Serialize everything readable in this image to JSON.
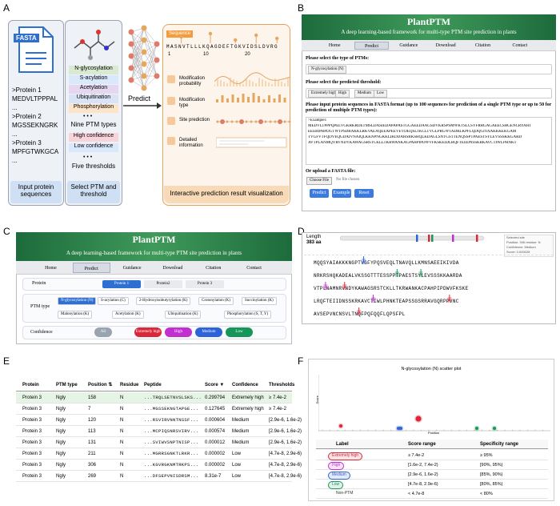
{
  "panel_labels": [
    "A",
    "B",
    "C",
    "D",
    "E",
    "F"
  ],
  "panel_a": {
    "fasta_label": "FASTA",
    "fasta_lines": [
      ">Protein 1",
      "MEDVLTPPPAL",
      "...",
      ">Protein 2",
      "MGSSEKNGRK",
      "...",
      ">Protein 3",
      "MPFGTWKGCA",
      "..."
    ],
    "input_caption": "Input protein sequences",
    "ptm_types": [
      "N-glycosylation",
      "S-acylation",
      "Acetylation",
      "Ubiquitination",
      "Phosphorylation"
    ],
    "ellipsis": "• • •",
    "ptm_caption": "Nine PTM types",
    "thresholds": [
      "High confidence",
      "Low confidence"
    ],
    "threshold_caption": "Five thresholds",
    "select_caption": "Select PTM and threshold",
    "predict": "Predict",
    "sequence_chip": "Sequence",
    "sequence": "MASNVTLLLKQAGDEFTGKVIDSLDVRG",
    "axis_ticks": [
      "1",
      "10",
      "20"
    ],
    "rows": [
      "Modification probability",
      "Modification type",
      "Site prediction",
      "Detailed information"
    ],
    "viz_caption": "Interactive prediction result visualization"
  },
  "site": {
    "name": "PlantPTM",
    "tagline": "A deep learning-based framework for multi-type PTM site prediction in plants",
    "nav": [
      "Home",
      "Predict",
      "Guidance",
      "Download",
      "Citation",
      "Contact"
    ]
  },
  "panel_b": {
    "ptm_prompt": "Please select the type of PTMs:",
    "ptm_chip": "N-glycosylation (N)",
    "threshold_prompt": "Please select the predicted threshold:",
    "threshold_chips": [
      "Extremely high",
      "High",
      "Medium",
      "Low"
    ],
    "seq_prompt": "Please input protein sequences in FASTA format (up to 100 sequences for prediction of a single PTM type or up to 50 for prediction of multiple PTM types):",
    "textarea": [
      ">Example1",
      "MEDVLTPPPQPELVGKRKRDETMSLDASIEDAPAPASTGGAEEDAAGSDVKRSPSMWKTSLCSYFRRGAGAEECSHGENCRYAHT",
      "EEERIPRPDGTWTPSDRAKKLRKVAEAQEEAPEEVEVDEQSLTKCLTVGLPRGWTADRLKPFLQDQGIYAAKKKEKGAM",
      "TVGFVTFQDVEQGDAIVNAIQLKKNPNGKKLIKDDAHSRKSHQLKDAGLSNTGSTTENQSSPTPAESTSYLEVSSSKKGARD",
      "AVTPLANMQYRVNDYKAWAGSRSTCKLLTKRWANKACPAHPIPDWVFKSKEIDLRQFTEIIDNSSKRKAVCTIWLPHNKT"
    ],
    "upload_prompt": "Or upload a FASTA file:",
    "choose": "Choose File",
    "no_file": "No file chosen",
    "buttons": [
      "Predict",
      "Example",
      "Reset"
    ]
  },
  "panel_c": {
    "protein_label": "Protein",
    "proteins": [
      "Protein 1",
      "Protein2",
      "Protein 3"
    ],
    "ptm_label": "PTM type",
    "ptm_types": [
      "N-glycosylation (N)",
      "S-acylation (C)",
      "2-Hydroxyisobutyrylation (K)",
      "Crotonylation (K)",
      "Succinylation (K)",
      "Malonylation (K)",
      "Acetylation (K)",
      "Ubiquitination (K)",
      "Phosphorylation (S, T, Y)"
    ],
    "confidence_label": "Confidence",
    "confidence": [
      "All",
      "Extremely high",
      "High",
      "Medium",
      "Low"
    ]
  },
  "panel_d": {
    "length_label": "Length",
    "length": "383 aa",
    "info": [
      "Selected site",
      "Position: 346 residue: N",
      "Confidence: Medium",
      "Score: 0.000028"
    ],
    "rows": [
      "MQQSYAIAKKKNGPTVGFYPQSVEQLTNAVQLLKMNSAEEIKIVDA",
      "NRKRSHQKADEALVKSSGTTTESSPPTPAESTSYLEVSSSKKAARDA",
      "VTPLNAMNRVNDYKAWAGSRSTCKLLTKRWANKACPAHPIPDWVFKSKE",
      "LRQFTEIIDNSSKRKAVCTIWLPHNKTEAPSSGSRRAVGQRPPVNC",
      "AVSEPVNCNSVLTNQFPQFQQFLQPSFPL"
    ]
  },
  "panel_e": {
    "columns": [
      "Protein",
      "PTM type",
      "Position ⇅",
      "Residue",
      "Peptide",
      "Score ▼",
      "Confidence",
      "Thresholds"
    ],
    "rows": [
      [
        "Protein 3",
        "Ngly",
        "158",
        "N",
        "...TRQLSETNVSLSKS...",
        "0.299794",
        "Extremely high",
        "≥ 7.4e-2"
      ],
      [
        "Protein 3",
        "Ngly",
        "7",
        "N",
        "...MGSSEKNGTAPGE...",
        "0.127645",
        "Extremely high",
        "≥ 7.4e-2"
      ],
      [
        "Protein 3",
        "Ngly",
        "120",
        "N",
        "...RSVIRVNNTNSSF...",
        "0.000604",
        "Medium",
        "[2.9e-6, 1.6e-2)"
      ],
      [
        "Protein 3",
        "Ngly",
        "113",
        "N",
        "...MCPIQSNRSVIRV...",
        "0.000574",
        "Medium",
        "[2.9e-6, 1.6e-2)"
      ],
      [
        "Protein 3",
        "Ngly",
        "131",
        "N",
        "...SVIWVSNPTNISP...",
        "0.000012",
        "Medium",
        "[2.9e-6, 1.6e-2)"
      ],
      [
        "Protein 3",
        "Ngly",
        "211",
        "N",
        "...MGRRSGNKTLRKR...",
        "0.000002",
        "Low",
        "[4.7e-8, 2.9e-6)"
      ],
      [
        "Protein 3",
        "Ngly",
        "306",
        "N",
        "...KGVRGKNMTRKPS...",
        "0.000002",
        "Low",
        "[4.7e-8, 2.9e-6)"
      ],
      [
        "Protein 3",
        "Ngly",
        "269",
        "N",
        "...DFSEPVNISDRSM...",
        "8.31e-7",
        "Low",
        "[4.7e-8, 2.9e-6)"
      ]
    ]
  },
  "panel_f": {
    "title": "N-glycosylation (N) scatter plot",
    "y_label": "Score",
    "x_label": "Position",
    "columns": [
      "Label",
      "Score range",
      "Specificity range"
    ],
    "rows": [
      [
        "Extremely high",
        "≥ 7.4e-2",
        "≥ 95%"
      ],
      [
        "High",
        "[1.6e-2, 7.4e-2)",
        "[90%, 95%)"
      ],
      [
        "Medium",
        "[2.9e-6, 1.6e-2)",
        "[85%, 90%)"
      ],
      [
        "Low",
        "[4.7e-8, 2.9e-6)",
        "[80%, 85%)"
      ],
      [
        "Non-PTM",
        "< 4.7e-8",
        "< 80%"
      ]
    ]
  }
}
